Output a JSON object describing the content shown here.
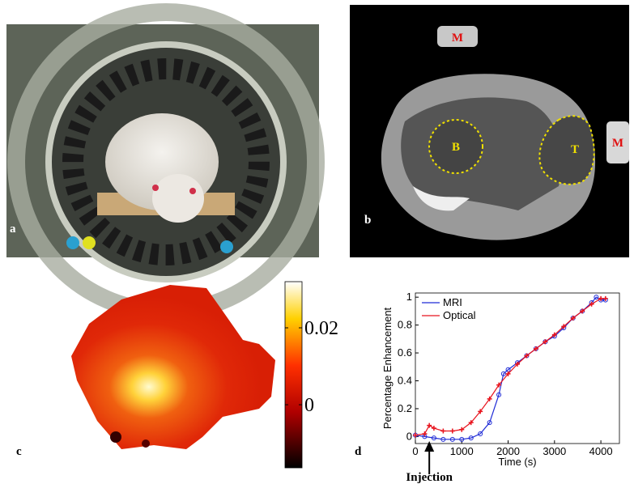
{
  "panels": {
    "a": {
      "label": "a"
    },
    "b": {
      "label": "b",
      "annotations": [
        "M",
        "B",
        "T",
        "M"
      ]
    },
    "c": {
      "label": "c",
      "colorbar": {
        "lim": [
          -0.0164,
          0.032
        ],
        "ticks": [
          0.02,
          0
        ]
      }
    },
    "d": {
      "label": "d",
      "annotation": "Injection",
      "annotation_x": 300
    }
  },
  "chart_data": {
    "type": "line",
    "x_label": "Time (s)",
    "y_label": "Percentage Enhancement",
    "xlim": [
      0,
      4400
    ],
    "ylim": [
      -0.05,
      1.03
    ],
    "xticks": [
      0,
      1000,
      2000,
      3000,
      4000
    ],
    "yticks": [
      0,
      0.2,
      0.4,
      0.6,
      0.8,
      1
    ],
    "legend": "upper-left",
    "series": [
      {
        "name": "MRI",
        "color": "#1f2bd6",
        "marker": "circle",
        "x": [
          0,
          200,
          400,
          600,
          800,
          1000,
          1200,
          1400,
          1600,
          1800,
          1900,
          2000,
          2200,
          2400,
          2600,
          2800,
          3000,
          3200,
          3400,
          3600,
          3800,
          3900,
          4000,
          4100
        ],
        "values": [
          0.01,
          0,
          -0.01,
          -0.02,
          -0.02,
          -0.02,
          -0.01,
          0.02,
          0.1,
          0.3,
          0.45,
          0.48,
          0.53,
          0.58,
          0.63,
          0.68,
          0.72,
          0.78,
          0.85,
          0.9,
          0.96,
          1.0,
          0.98,
          0.98
        ]
      },
      {
        "name": "Optical",
        "color": "#e8141e",
        "marker": "plus",
        "x": [
          0,
          200,
          300,
          400,
          600,
          800,
          1000,
          1200,
          1400,
          1600,
          1800,
          2000,
          2200,
          2400,
          2600,
          2800,
          3000,
          3200,
          3400,
          3600,
          3800,
          4000,
          4100
        ],
        "values": [
          0.01,
          0.02,
          0.08,
          0.06,
          0.04,
          0.04,
          0.05,
          0.1,
          0.18,
          0.27,
          0.37,
          0.45,
          0.52,
          0.58,
          0.63,
          0.68,
          0.73,
          0.79,
          0.85,
          0.9,
          0.95,
          0.99,
          0.99
        ]
      }
    ]
  }
}
